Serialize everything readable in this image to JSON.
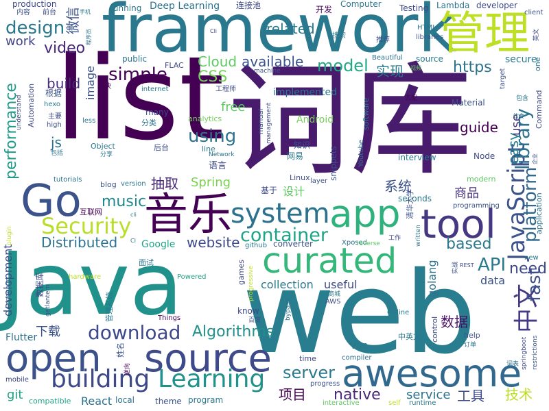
{
  "words": [
    {
      "text": "Java",
      "color": "#21918c"
    },
    {
      "text": "web",
      "color": "#287d8e"
    },
    {
      "text": "list",
      "color": "#440154"
    },
    {
      "text": "词库",
      "color": "#481b6d"
    },
    {
      "text": "framework",
      "color": "#2a788e"
    },
    {
      "text": "awesome",
      "color": "#31688e"
    },
    {
      "text": "open",
      "color": "#3b528b"
    },
    {
      "text": "source",
      "color": "#3e4a89"
    },
    {
      "text": "curated",
      "color": "#35b779"
    },
    {
      "text": "Go",
      "color": "#3b528b"
    },
    {
      "text": "app",
      "color": "#2db27d"
    },
    {
      "text": "音乐",
      "color": "#440154"
    },
    {
      "text": "tool",
      "color": "#453781"
    },
    {
      "text": "管理",
      "color": "#bddf26"
    },
    {
      "text": "Security",
      "color": "#b8de29"
    },
    {
      "text": "system",
      "color": "#2c728e"
    },
    {
      "text": "JavaScript",
      "color": "#3b528b"
    },
    {
      "text": "building",
      "color": "#3e4989"
    },
    {
      "text": "Learning",
      "color": "#21918c"
    },
    {
      "text": "download",
      "color": "#3e4989"
    },
    {
      "text": "中文",
      "color": "#443983"
    },
    {
      "text": "container",
      "color": "#20a386"
    },
    {
      "text": "design",
      "color": "#2a788e"
    },
    {
      "text": "video",
      "color": "#482677"
    },
    {
      "text": "performance",
      "color": "#1f9a8a"
    },
    {
      "text": "library",
      "color": "#2c728e"
    },
    {
      "text": "fast",
      "color": "#3b528b"
    },
    {
      "text": "platform",
      "color": "#31688e"
    },
    {
      "text": "API",
      "color": "#2a788e"
    },
    {
      "text": "need",
      "color": "#3e4989"
    },
    {
      "text": "server",
      "color": "#2a788e"
    },
    {
      "text": "Algorithms",
      "color": "#21918c"
    },
    {
      "text": "music",
      "color": "#23888e"
    },
    {
      "text": "simple",
      "color": "#440154"
    },
    {
      "text": "model",
      "color": "#22a884"
    },
    {
      "text": "https",
      "color": "#2c728e"
    },
    {
      "text": "Distributed",
      "color": "#2c728e"
    },
    {
      "text": "website",
      "color": "#3e4989"
    },
    {
      "text": "based",
      "color": "#2a788e"
    },
    {
      "text": "native",
      "color": "#482878"
    },
    {
      "text": "service",
      "color": "#2c728e"
    },
    {
      "text": "Cloud",
      "color": "#5ec962"
    },
    {
      "text": "CSS",
      "color": "#73d056"
    },
    {
      "text": "using",
      "color": "#2c728e"
    },
    {
      "text": "available",
      "color": "#3b528b"
    },
    {
      "text": "related",
      "color": "#2a788e"
    },
    {
      "text": "build",
      "color": "#472c7a"
    },
    {
      "text": "work",
      "color": "#414487"
    },
    {
      "text": "js",
      "color": "#2c728e"
    },
    {
      "text": "guide",
      "color": "#440154"
    },
    {
      "text": "easy",
      "color": "#287d8e"
    },
    {
      "text": "use",
      "color": "#453781"
    },
    {
      "text": "secure",
      "color": "#2a788e"
    },
    {
      "text": "Spring",
      "color": "#7ad151"
    },
    {
      "text": "抽取",
      "color": "#482878"
    },
    {
      "text": "数据",
      "color": "#471063"
    },
    {
      "text": "商品",
      "color": "#46327e"
    },
    {
      "text": "系统",
      "color": "#3b528b"
    },
    {
      "text": "技术",
      "color": "#bddf26"
    },
    {
      "text": "项目",
      "color": "#440154"
    },
    {
      "text": "工具",
      "color": "#3e4a89"
    },
    {
      "text": "下载",
      "color": "#3b528b"
    },
    {
      "text": "实现",
      "color": "#2a788e"
    },
    {
      "text": "设计",
      "color": "#5ec962"
    },
    {
      "text": "微信",
      "color": "#3b528b"
    },
    {
      "text": "free",
      "color": "#5ec962"
    },
    {
      "text": "git",
      "color": "#20a386"
    },
    {
      "text": "React",
      "color": "#2c728e"
    },
    {
      "text": "Vue",
      "color": "#2a788e"
    },
    {
      "text": "collection",
      "color": "#2a788e"
    },
    {
      "text": "useful",
      "color": "#3e4989"
    },
    {
      "text": "golang",
      "color": "#2c728e"
    },
    {
      "text": "data",
      "color": "#3b528b"
    },
    {
      "text": "Google",
      "color": "#20a386"
    },
    {
      "text": "image",
      "color": "#3b528b"
    },
    {
      "text": "development",
      "color": "#3e4a89"
    },
    {
      "text": "Flutter",
      "color": "#2c728e"
    },
    {
      "text": "Android",
      "color": "#73d056"
    },
    {
      "text": "Deep Learning",
      "color": "#2c728e"
    },
    {
      "text": "running",
      "color": "#2a788e"
    },
    {
      "text": "连接池",
      "color": "#3e4a89"
    },
    {
      "text": "开发",
      "color": "#440154"
    },
    {
      "text": "Computer",
      "color": "#2a788e"
    },
    {
      "text": "Testing",
      "color": "#3e4a89"
    },
    {
      "text": "Lambda",
      "color": "#2c728e"
    },
    {
      "text": "developer",
      "color": "#3e4989"
    },
    {
      "text": "client",
      "color": "#3b528b"
    },
    {
      "text": "production",
      "color": "#3e4989"
    },
    {
      "text": "内容",
      "color": "#3b528b"
    },
    {
      "text": "前台",
      "color": "#3e4a89"
    },
    {
      "text": "手机",
      "color": "#2a788e"
    },
    {
      "text": "搜索",
      "color": "#2a788e"
    },
    {
      "text": "推荐",
      "color": "#3b528b"
    },
    {
      "text": "HTML",
      "color": "#2c728e"
    },
    {
      "text": "libraries",
      "color": "#3b528b"
    },
    {
      "text": "Beautiful",
      "color": "#2c728e"
    },
    {
      "text": "source",
      "color": "#2a788e"
    },
    {
      "text": "machine",
      "color": "#3b528b"
    },
    {
      "text": "public",
      "color": "#2c728e"
    },
    {
      "text": "FLAC",
      "color": "#3e4989"
    },
    {
      "text": "模块",
      "color": "#440154"
    },
    {
      "text": "internet",
      "color": "#2a788e"
    },
    {
      "text": "implemented",
      "color": "#2a788e"
    },
    {
      "text": "工程师",
      "color": "#3e4a89"
    },
    {
      "text": "根据",
      "color": "#3b528b"
    },
    {
      "text": "Automation",
      "color": "#3e4989"
    },
    {
      "text": "hexo",
      "color": "#2a788e"
    },
    {
      "text": "主要",
      "color": "#3e4a89"
    },
    {
      "text": "high",
      "color": "#3b528b"
    },
    {
      "text": "less",
      "color": "#2a788e"
    },
    {
      "text": "many",
      "color": "#3e4989"
    },
    {
      "text": "分类",
      "color": "#2c728e"
    },
    {
      "text": "analytics",
      "color": "#73d056"
    },
    {
      "text": "Object",
      "color": "#2a788e"
    },
    {
      "text": "后台",
      "color": "#3e4a89"
    },
    {
      "text": "分享",
      "color": "#2a788e"
    },
    {
      "text": "line",
      "color": "#2a788e"
    },
    {
      "text": "Network",
      "color": "#2c728e"
    },
    {
      "text": "语言",
      "color": "#3e4989"
    },
    {
      "text": "知识",
      "color": "#3b528b"
    },
    {
      "text": "网易",
      "color": "#2a788e"
    },
    {
      "text": "snippets",
      "color": "#3b528b"
    },
    {
      "text": "Youtube",
      "color": "#2c728e"
    },
    {
      "text": "interview",
      "color": "#2a788e"
    },
    {
      "text": "Node",
      "color": "#3e4989"
    },
    {
      "text": "Material",
      "color": "#3b528b"
    },
    {
      "text": "包含",
      "color": "#2a788e"
    },
    {
      "text": "Command",
      "color": "#3e4a89"
    },
    {
      "text": "tutorials",
      "color": "#2c728e"
    },
    {
      "text": "blog",
      "color": "#3b528b"
    },
    {
      "text": "version",
      "color": "#2a788e"
    },
    {
      "text": "Linux",
      "color": "#3e4989"
    },
    {
      "text": "layer",
      "color": "#3b528b"
    },
    {
      "text": "modern",
      "color": "#5ec962"
    },
    {
      "text": "seconds",
      "color": "#2a788e"
    },
    {
      "text": "programming",
      "color": "#3b528b"
    },
    {
      "text": "application",
      "color": "#2c728e"
    },
    {
      "text": "互联网",
      "color": "#440154"
    },
    {
      "text": "基于",
      "color": "#3e4a89"
    },
    {
      "text": "github",
      "color": "#2a788e"
    },
    {
      "text": "converter",
      "color": "#3b528b"
    },
    {
      "text": "Xposed",
      "color": "#2c728e"
    },
    {
      "text": "reverse",
      "color": "#5ec962"
    },
    {
      "text": "工作",
      "color": "#3e4989"
    },
    {
      "text": "清华大学",
      "color": "#3b528b"
    },
    {
      "text": "面试",
      "color": "#2a788e"
    },
    {
      "text": "games",
      "color": "#3e4989"
    },
    {
      "text": "progressive",
      "color": "#bddf26"
    },
    {
      "text": "Powered",
      "color": "#20a386"
    },
    {
      "text": "hardware",
      "color": "#bddf26"
    },
    {
      "text": "plugin",
      "color": "#bddf26"
    },
    {
      "text": "Language",
      "color": "#2c728e"
    },
    {
      "text": "数据库",
      "color": "#3e4989"
    },
    {
      "text": "getlantern",
      "color": "#3b528b"
    },
    {
      "text": "Things",
      "color": "#440154"
    },
    {
      "text": "know",
      "color": "#3e4989"
    },
    {
      "text": "百度",
      "color": "#3b528b"
    },
    {
      "text": "商城",
      "color": "#2a788e"
    },
    {
      "text": "AWS",
      "color": "#3e4a89"
    },
    {
      "text": "Online",
      "color": "#2a788e"
    },
    {
      "text": "bypass",
      "color": "#2c728e"
    },
    {
      "text": "control",
      "color": "#3e4989"
    },
    {
      "text": "中英文",
      "color": "#2a788e"
    },
    {
      "text": "help",
      "color": "#3b528b"
    },
    {
      "text": "订单",
      "color": "#2c728e"
    },
    {
      "text": "springboot",
      "color": "#3e4989"
    },
    {
      "text": "restrictions",
      "color": "#3b528b"
    },
    {
      "text": "管理系统",
      "color": "#2a788e"
    },
    {
      "text": "time",
      "color": "#3e4989"
    },
    {
      "text": "compiler",
      "color": "#2c728e"
    },
    {
      "text": "progress",
      "color": "#3b528b"
    },
    {
      "text": "interactive",
      "color": "#5ec962"
    },
    {
      "text": "self",
      "color": "#bddf26"
    },
    {
      "text": "runtime",
      "color": "#2a788e"
    },
    {
      "text": "mobile",
      "color": "#3e4a89"
    },
    {
      "text": "compatible",
      "color": "#20a386"
    },
    {
      "text": "local",
      "color": "#2c728e"
    },
    {
      "text": "theme",
      "color": "#3b528b"
    },
    {
      "text": "program",
      "color": "#2a788e"
    },
    {
      "text": "manual",
      "color": "#3b528b"
    },
    {
      "text": "management",
      "color": "#3e4989"
    },
    {
      "text": "written",
      "color": "#2c728e"
    },
    {
      "text": "software",
      "color": "#2a788e"
    },
    {
      "text": "Cli",
      "color": "#3e4989"
    },
    {
      "text": "target",
      "color": "#3b528b"
    },
    {
      "text": "one",
      "color": "#2a788e"
    },
    {
      "text": "英文",
      "color": "#3e4989"
    },
    {
      "text": "匹配",
      "color": "#440154"
    },
    {
      "text": "实战",
      "color": "#3b528b"
    },
    {
      "text": "程序员",
      "color": "#2c728e"
    },
    {
      "text": "cli",
      "color": "#2a788e"
    },
    {
      "text": "understand",
      "color": "#3e4989"
    },
    {
      "text": "包括",
      "color": "#2c728e"
    },
    {
      "text": "饮食",
      "color": "#2a788e"
    },
    {
      "text": "企业",
      "color": "#3b528b"
    },
    {
      "text": "REST",
      "color": "#3e4989"
    },
    {
      "text": "new",
      "color": "#2a788e"
    },
    {
      "text": "词表",
      "color": "#2c728e"
    },
    {
      "text": "姓名",
      "color": "#3b528b"
    },
    {
      "text": "逆向",
      "color": "#440154"
    },
    {
      "text": "CI",
      "color": "#2a788e"
    },
    {
      "text": "视频",
      "color": "#5ec962"
    }
  ]
}
